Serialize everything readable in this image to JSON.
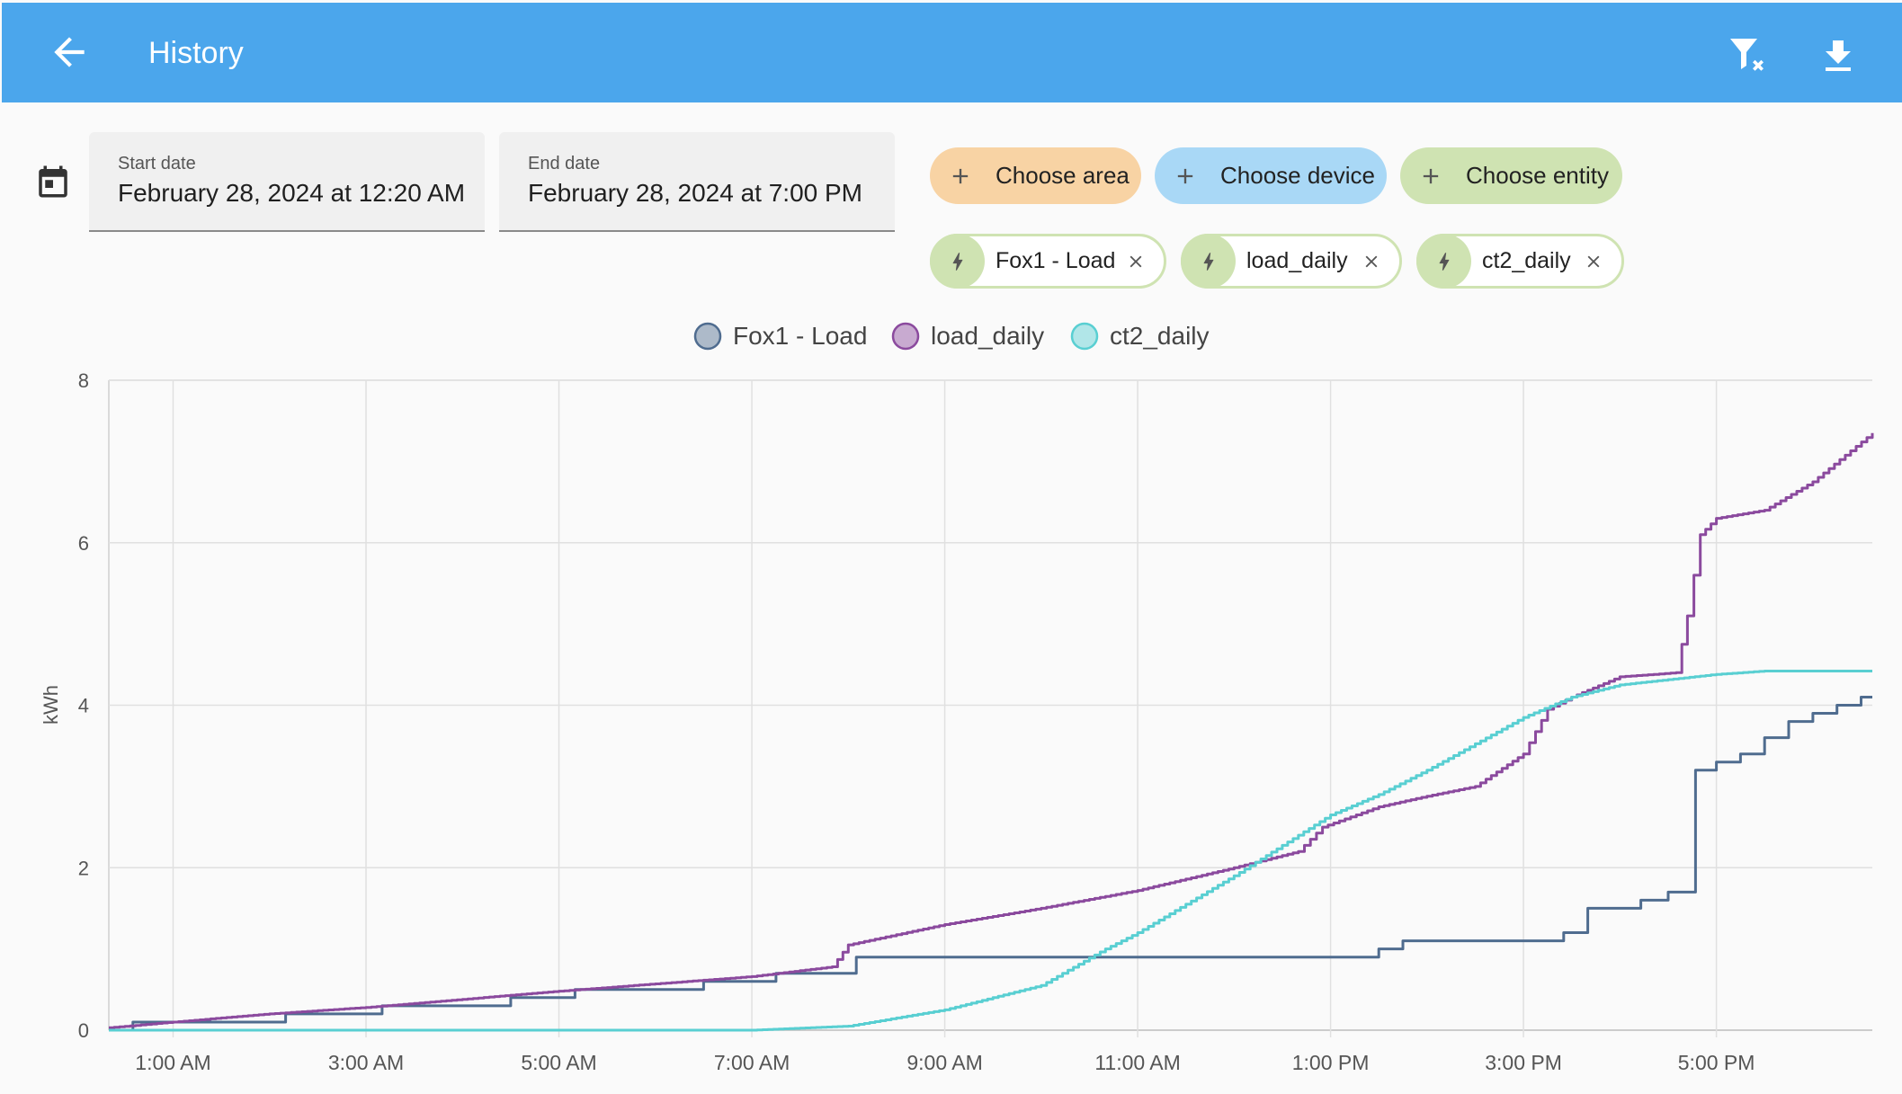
{
  "header": {
    "title": "History"
  },
  "colors": {
    "appbar": "#4ba6ec",
    "fox1": "#4f6c8f",
    "load_daily": "#8b4a9e",
    "ct2_daily": "#59cfd2"
  },
  "icons": {
    "back": "arrow-left-icon",
    "filter_clear": "filter-remove-icon",
    "download": "download-icon",
    "calendar": "calendar-icon",
    "add": "plus-icon",
    "entity": "lightning-bolt-icon",
    "remove": "close-icon"
  },
  "date_picker": {
    "start": {
      "label": "Start date",
      "value": "February 28, 2024 at 12:20 AM"
    },
    "end": {
      "label": "End date",
      "value": "February 28, 2024 at 7:00 PM"
    }
  },
  "targets": {
    "area": "Choose area",
    "device": "Choose device",
    "entity": "Choose entity"
  },
  "entities": [
    "Fox1 - Load",
    "load_daily",
    "ct2_daily"
  ],
  "chart_data": {
    "type": "line",
    "step": true,
    "title": "",
    "xlabel": "",
    "ylabel": "kWh",
    "ylim": [
      0,
      8
    ],
    "yticks": [
      0,
      2,
      4,
      6,
      8
    ],
    "xlim": [
      "00:20",
      "18:00"
    ],
    "xticks": [
      "1:00 AM",
      "3:00 AM",
      "5:00 AM",
      "7:00 AM",
      "9:00 AM",
      "11:00 AM",
      "1:00 PM",
      "3:00 PM",
      "5:00 PM"
    ],
    "grid": true,
    "legend": "top-center",
    "series": [
      {
        "name": "Fox1 - Load",
        "color": "#4f6c8f",
        "points": [
          [
            "00:20",
            0
          ],
          [
            "00:35",
            0
          ],
          [
            "00:35",
            0.1
          ],
          [
            "02:10",
            0.1
          ],
          [
            "02:10",
            0.2
          ],
          [
            "03:10",
            0.2
          ],
          [
            "03:10",
            0.3
          ],
          [
            "04:30",
            0.3
          ],
          [
            "04:30",
            0.4
          ],
          [
            "05:10",
            0.4
          ],
          [
            "05:10",
            0.5
          ],
          [
            "06:30",
            0.5
          ],
          [
            "06:30",
            0.6
          ],
          [
            "07:15",
            0.6
          ],
          [
            "07:15",
            0.7
          ],
          [
            "08:05",
            0.7
          ],
          [
            "08:05",
            0.9
          ],
          [
            "13:30",
            0.9
          ],
          [
            "13:30",
            1.0
          ],
          [
            "13:45",
            1.0
          ],
          [
            "13:45",
            1.1
          ],
          [
            "15:25",
            1.1
          ],
          [
            "15:25",
            1.2
          ],
          [
            "15:40",
            1.2
          ],
          [
            "15:40",
            1.5
          ],
          [
            "16:13",
            1.5
          ],
          [
            "16:13",
            1.6
          ],
          [
            "16:30",
            1.6
          ],
          [
            "16:30",
            1.7
          ],
          [
            "16:47",
            1.7
          ],
          [
            "16:47",
            3.2
          ],
          [
            "17:00",
            3.2
          ],
          [
            "17:00",
            3.3
          ],
          [
            "17:15",
            3.3
          ],
          [
            "17:15",
            3.4
          ],
          [
            "17:30",
            3.4
          ],
          [
            "17:30",
            3.6
          ],
          [
            "17:45",
            3.6
          ],
          [
            "17:45",
            3.8
          ],
          [
            "18:00",
            3.8
          ],
          [
            "18:00",
            3.9
          ],
          [
            "18:15",
            3.9
          ],
          [
            "18:15",
            4.0
          ],
          [
            "18:30",
            4.0
          ],
          [
            "18:30",
            4.1
          ],
          [
            "18:37",
            4.1
          ]
        ]
      },
      {
        "name": "load_daily",
        "color": "#8b4a9e",
        "points": [
          [
            "00:20",
            0.03
          ],
          [
            "01:00",
            0.1
          ],
          [
            "02:00",
            0.2
          ],
          [
            "03:00",
            0.28
          ],
          [
            "04:00",
            0.38
          ],
          [
            "05:00",
            0.48
          ],
          [
            "06:00",
            0.57
          ],
          [
            "07:00",
            0.66
          ],
          [
            "07:50",
            0.78
          ],
          [
            "08:00",
            1.05
          ],
          [
            "09:00",
            1.3
          ],
          [
            "10:00",
            1.5
          ],
          [
            "11:00",
            1.72
          ],
          [
            "12:00",
            2.0
          ],
          [
            "12:40",
            2.2
          ],
          [
            "12:55",
            2.5
          ],
          [
            "13:30",
            2.75
          ],
          [
            "14:00",
            2.88
          ],
          [
            "14:30",
            3.0
          ],
          [
            "15:00",
            3.4
          ],
          [
            "15:15",
            3.95
          ],
          [
            "15:30",
            4.1
          ],
          [
            "16:00",
            4.35
          ],
          [
            "16:35",
            4.4
          ],
          [
            "16:42",
            5.1
          ],
          [
            "16:50",
            6.1
          ],
          [
            "17:00",
            6.3
          ],
          [
            "17:30",
            6.4
          ],
          [
            "18:00",
            6.75
          ],
          [
            "18:37",
            7.35
          ]
        ]
      },
      {
        "name": "ct2_daily",
        "color": "#59cfd2",
        "points": [
          [
            "00:20",
            0
          ],
          [
            "07:00",
            0
          ],
          [
            "08:00",
            0.05
          ],
          [
            "09:00",
            0.25
          ],
          [
            "10:00",
            0.55
          ],
          [
            "10:40",
            1.0
          ],
          [
            "11:00",
            1.2
          ],
          [
            "12:00",
            1.9
          ],
          [
            "13:00",
            2.65
          ],
          [
            "13:30",
            2.9
          ],
          [
            "14:00",
            3.2
          ],
          [
            "15:00",
            3.85
          ],
          [
            "15:30",
            4.1
          ],
          [
            "16:00",
            4.25
          ],
          [
            "17:00",
            4.38
          ],
          [
            "17:30",
            4.42
          ],
          [
            "18:37",
            4.42
          ]
        ]
      }
    ]
  }
}
